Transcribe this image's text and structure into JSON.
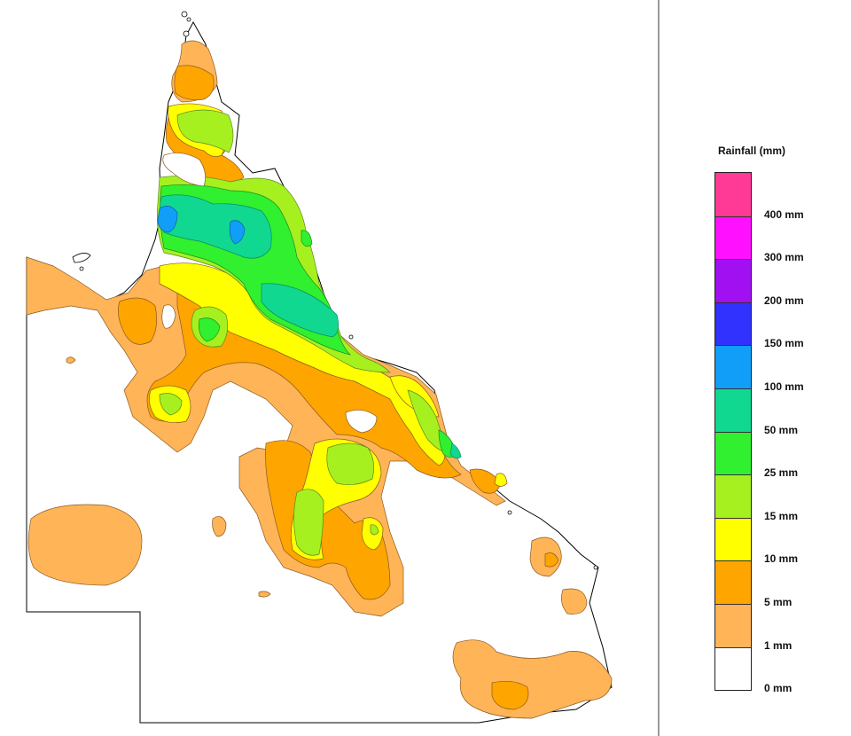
{
  "legend": {
    "title": "Rainfall (mm)",
    "labels": [
      "400 mm",
      "300 mm",
      "200 mm",
      "150 mm",
      "100 mm",
      "50 mm",
      "25 mm",
      "15 mm",
      "10 mm",
      "5 mm",
      "1 mm",
      "0 mm"
    ],
    "colors": [
      "#ff3a96",
      "#ff10ff",
      "#a010f0",
      "#3232ff",
      "#109ef8",
      "#10d890",
      "#30f030",
      "#a6f020",
      "#ffff00",
      "#ffa500",
      "#ffb458",
      "#ffffff"
    ]
  },
  "map": {
    "region": "Queensland",
    "border_color": "#000000"
  }
}
